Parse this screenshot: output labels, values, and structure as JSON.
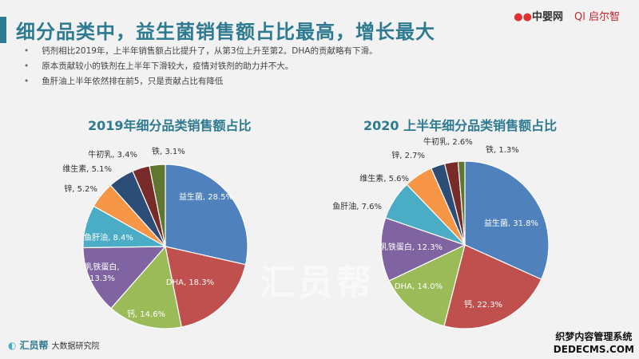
{
  "header": {
    "title": "细分品类中，益生菌销售额占比最高，增长最大",
    "logo_left": "中婴网",
    "logo_right": "启尔智"
  },
  "bullets": [
    "钙剂相比2019年，上半年销售额占比提升了，从第3位上升至第2。DHA的贡献略有下滑。",
    "原本贡献较小的铁剂在上半年下滑较大，疫情对铁剂的助力并不大。",
    "鱼肝油上半年依然排在前5，只是贡献占比有降低"
  ],
  "watermark": "汇员帮",
  "footer": {
    "brand": "汇员帮",
    "sub": "大数据研究院",
    "wm_line1": "织梦内容管理系统",
    "wm_line2": "DEDECMS.COM"
  },
  "palette": [
    "#4f81bd",
    "#c0504d",
    "#9bbb59",
    "#8064a2",
    "#4bacc6",
    "#f79646",
    "#2c4d75",
    "#772c2a",
    "#5f7530"
  ],
  "chart_data": [
    {
      "type": "pie",
      "title": "2019年细分品类销售额占比",
      "unit": "%",
      "categories": [
        "益生菌",
        "DHA",
        "钙",
        "乳铁蛋白",
        "鱼肝油",
        "锌",
        "维生素",
        "牛初乳",
        "铁"
      ],
      "values": [
        28.5,
        18.3,
        14.6,
        13.3,
        8.4,
        5.2,
        5.1,
        3.4,
        3.1
      ]
    },
    {
      "type": "pie",
      "title": "2020 上半年细分品类销售额占比",
      "unit": "%",
      "categories": [
        "益生菌",
        "钙",
        "DHA",
        "乳铁蛋白",
        "鱼肝油",
        "维生素",
        "锌",
        "牛初乳",
        "铁"
      ],
      "values": [
        31.8,
        22.3,
        14.0,
        12.3,
        7.6,
        5.6,
        2.7,
        2.6,
        1.3
      ]
    }
  ]
}
